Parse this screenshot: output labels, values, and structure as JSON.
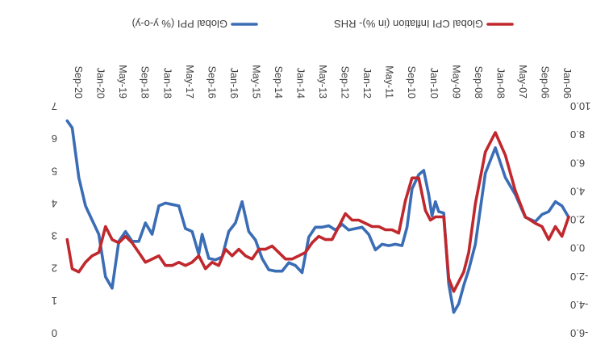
{
  "chart_data": {
    "type": "line",
    "orientation": "image rotated 180 degrees",
    "x": [
      "Jan-06",
      "Sep-06",
      "May-07",
      "Jan-08",
      "Sep-08",
      "May-09",
      "Jan-10",
      "Sep-10",
      "May-11",
      "Jan-12",
      "Sep-12",
      "May-13",
      "Jan-14",
      "Sep-14",
      "May-15",
      "Jan-16",
      "Sep-16",
      "May-17",
      "Jan-18",
      "Sep-18",
      "May-19",
      "Jan-20",
      "Sep-20"
    ],
    "y_left": {
      "ticks": [
        "-6.0",
        "-4.0",
        "-2.0",
        "0.0",
        "2.0",
        "4.0",
        "6.0",
        "8.0",
        "10.0"
      ],
      "ylim": [
        -6,
        10
      ]
    },
    "y_right": {
      "ticks": [
        "0",
        "1",
        "2",
        "3",
        "4",
        "5",
        "6",
        "7"
      ],
      "ylim": [
        0,
        7
      ]
    },
    "legend": {
      "placement": "top"
    },
    "series": [
      {
        "name": "Global PPI (% y-o-y)",
        "axis": "left",
        "color": "#3A6DB5",
        "x": [
          2006,
          2006.2,
          2006.4,
          2006.6,
          2006.8,
          2007,
          2007.3,
          2007.6,
          2007.9,
          2008.2,
          2008.5,
          2008.8,
          2009,
          2009.15,
          2009.3,
          2009.45,
          2009.6,
          2009.75,
          2009.9,
          2010,
          2010.1,
          2010.2,
          2010.35,
          2010.5,
          2010.7,
          2010.85,
          2011,
          2011.2,
          2011.4,
          2011.6,
          2011.8,
          2012,
          2012.2,
          2012.4,
          2012.6,
          2012.8,
          2013,
          2013.2,
          2013.4,
          2013.6,
          2013.8,
          2014,
          2014.2,
          2014.4,
          2014.6,
          2014.8,
          2015,
          2015.2,
          2015.4,
          2015.6,
          2015.8,
          2016,
          2016.2,
          2016.4,
          2016.6,
          2016.8,
          2017,
          2017.1,
          2017.3,
          2017.5,
          2017.7,
          2017.9,
          2018.1,
          2018.3,
          2018.5,
          2018.7,
          2018.9,
          2019.1,
          2019.3,
          2019.5,
          2019.7,
          2019.9,
          2020.1,
          2020.3,
          2020.5,
          2020.7,
          2020.9,
          2021.05
        ],
        "values": [
          2.2,
          3.0,
          3.3,
          2.6,
          2.4,
          1.9,
          2.2,
          3.8,
          5.0,
          7.1,
          5.3,
          0.3,
          -1.5,
          -2.6,
          -3.9,
          -4.5,
          -2.5,
          2.5,
          2.6,
          3.3,
          2.3,
          3.8,
          5.5,
          5.2,
          4.2,
          1.5,
          0.2,
          0.3,
          0.2,
          0.3,
          -0.1,
          1.0,
          1.5,
          1.4,
          1.3,
          1.7,
          1.3,
          1.6,
          1.5,
          1.5,
          0.8,
          -1.7,
          -1.2,
          -1.0,
          -1.6,
          -1.6,
          -1.5,
          -0.7,
          0.6,
          1.2,
          3.3,
          1.8,
          1.2,
          -0.6,
          -0.8,
          -0.7,
          1.0,
          -0.4,
          1.2,
          1.4,
          3.0,
          3.1,
          3.2,
          3.0,
          1.0,
          1.8,
          0.5,
          0.5,
          1.2,
          0.5,
          -2.8,
          -2.0,
          1.0,
          2.0,
          3.0,
          5.0,
          8.5,
          9.0
        ]
      },
      {
        "name": "Global CPI Inflation (in %)- RHS",
        "axis": "right",
        "color": "#C0282D",
        "x": [
          2006,
          2006.2,
          2006.4,
          2006.6,
          2006.8,
          2007,
          2007.3,
          2007.6,
          2007.9,
          2008.2,
          2008.5,
          2008.8,
          2009,
          2009.15,
          2009.3,
          2009.45,
          2009.6,
          2009.75,
          2009.9,
          2010,
          2010.15,
          2010.3,
          2010.5,
          2010.7,
          2010.9,
          2011.1,
          2011.3,
          2011.5,
          2011.7,
          2011.9,
          2012.1,
          2012.3,
          2012.5,
          2012.7,
          2012.9,
          2013.1,
          2013.3,
          2013.5,
          2013.7,
          2013.9,
          2014.1,
          2014.3,
          2014.5,
          2014.7,
          2014.9,
          2015.1,
          2015.3,
          2015.5,
          2015.7,
          2015.9,
          2016.1,
          2016.3,
          2016.5,
          2016.7,
          2016.9,
          2017.1,
          2017.3,
          2017.5,
          2017.7,
          2017.9,
          2018.1,
          2018.3,
          2018.5,
          2018.7,
          2018.9,
          2019.1,
          2019.3,
          2019.5,
          2019.7,
          2019.9,
          2020.1,
          2020.3,
          2020.5,
          2020.7,
          2020.9,
          2021.05
        ],
        "values": [
          3.6,
          3.0,
          3.3,
          2.9,
          3.3,
          3.4,
          3.6,
          4.4,
          5.5,
          6.2,
          5.6,
          4.0,
          2.5,
          1.9,
          1.6,
          1.3,
          1.7,
          3.6,
          3.6,
          3.6,
          3.5,
          3.8,
          4.8,
          4.8,
          4.1,
          3.1,
          3.2,
          3.2,
          3.3,
          3.3,
          3.4,
          3.5,
          3.5,
          3.7,
          3.3,
          2.9,
          2.9,
          3.0,
          2.8,
          2.5,
          2.4,
          2.3,
          2.3,
          2.5,
          2.7,
          2.6,
          2.6,
          2.3,
          2.4,
          2.6,
          2.4,
          2.6,
          2.1,
          2.2,
          2.0,
          2.4,
          2.2,
          2.1,
          2.2,
          2.1,
          2.1,
          2.4,
          2.3,
          2.2,
          2.5,
          2.8,
          3.0,
          2.8,
          2.9,
          3.3,
          2.5,
          2.4,
          2.2,
          1.9,
          2.0,
          2.9
        ]
      }
    ]
  }
}
